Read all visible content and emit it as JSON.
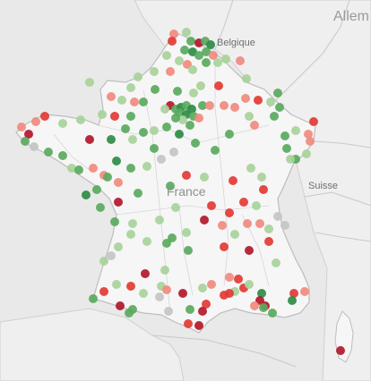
{
  "map": {
    "labels": {
      "belgique": "Belgique",
      "allemagne": "Allem",
      "france": "France",
      "suisse": "Suisse"
    },
    "colors": {
      "sea": "#e9e9e9",
      "land": "#f6f6f6",
      "neighbor_land": "#efefef",
      "border": "#bdbdbd",
      "marker_dark_green": "#2e8b45",
      "marker_green": "#5aa95e",
      "marker_light_green": "#a8d19a",
      "marker_gray": "#c4c4c4",
      "marker_light_red": "#f08a7e",
      "marker_red": "#e23a34",
      "marker_dark_red": "#b0182a"
    }
  }
}
